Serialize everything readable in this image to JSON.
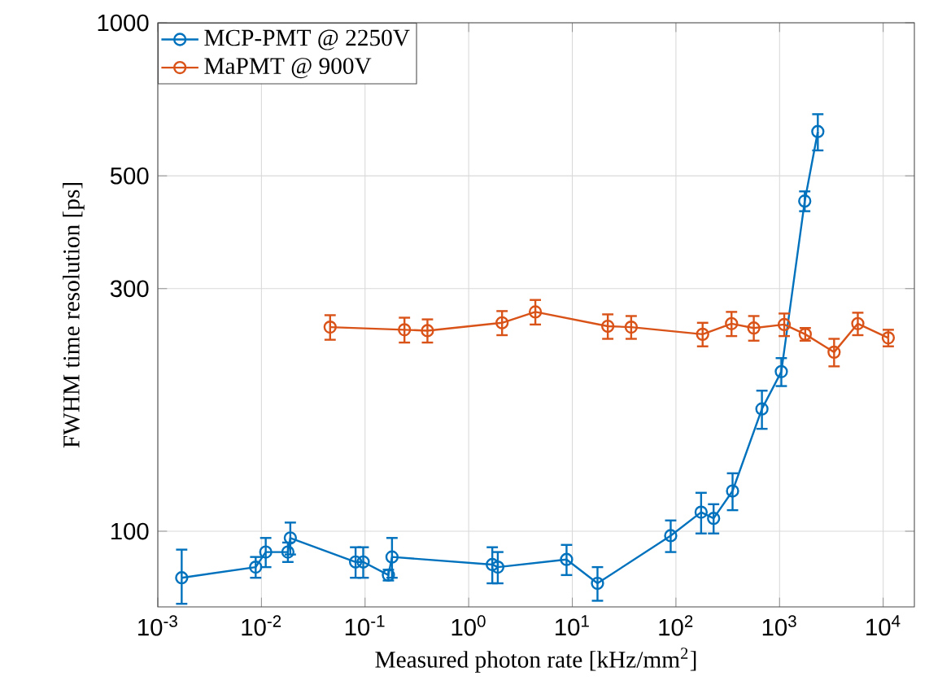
{
  "chart_data": {
    "type": "line",
    "xlabel": "Measured photon rate [kHz/mm$^{2}$]",
    "ylabel": "FWHM time resolution [ps]",
    "log": "xy",
    "grid": true,
    "legend": "top left",
    "marker": "circle",
    "line_style": "solid",
    "xlim": [
      0.001,
      20000
    ],
    "ylim": [
      71,
      1000
    ],
    "xticks": [
      {
        "value": 0.001,
        "label": "10$^{-3}$"
      },
      {
        "value": 0.01,
        "label": "10$^{-2}$"
      },
      {
        "value": 0.1,
        "label": "10$^{-1}$"
      },
      {
        "value": 1,
        "label": "10$^{0}$"
      },
      {
        "value": 10,
        "label": "10$^{1}$"
      },
      {
        "value": 100,
        "label": "10$^{2}$"
      },
      {
        "value": 1000,
        "label": "10$^{3}$"
      },
      {
        "value": 10000,
        "label": "10$^{4}$"
      }
    ],
    "yticks": [
      100,
      300,
      500,
      1000
    ],
    "series": [
      {
        "name": "MCP-PMT @ 2250V",
        "color": "#0072bd",
        "x": [
          0.0017,
          0.0088,
          0.011,
          0.018,
          0.019,
          0.081,
          0.096,
          0.168,
          0.182,
          1.69,
          1.91,
          8.8,
          17.5,
          89,
          175,
          231,
          352,
          676,
          1040,
          1750,
          2340
        ],
        "values": [
          81,
          85,
          91,
          91,
          97,
          87,
          87,
          82,
          89,
          86,
          85,
          88,
          79,
          98,
          109,
          106,
          120,
          174,
          206,
          446,
          611
        ],
        "errors": [
          [
            72,
            92
          ],
          4,
          6,
          4,
          7,
          6,
          6,
          2,
          8,
          7,
          6,
          6,
          6,
          7,
          10,
          7,
          10,
          15,
          13,
          20,
          50
        ]
      },
      {
        "name": "MaPMT @ 900V",
        "color": "#d95319",
        "x": [
          0.046,
          0.24,
          0.4,
          2.1,
          4.4,
          22,
          37,
          181,
          344,
          564,
          1110,
          1770,
          3360,
          5690,
          11200
        ],
        "values": [
          252,
          249,
          248,
          257,
          270,
          253,
          252,
          244,
          256,
          251,
          255,
          244,
          225,
          256,
          240
        ],
        "errors": [
          14,
          14,
          13,
          14,
          15,
          14,
          13,
          13,
          14,
          14,
          13,
          7,
          14,
          13,
          9
        ]
      }
    ]
  }
}
